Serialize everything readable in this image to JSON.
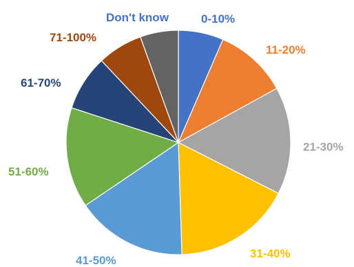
{
  "chart_data": {
    "type": "pie",
    "title": "",
    "categories": [
      "0-10%",
      "11-20%",
      "21-30%",
      "31-40%",
      "41-50%",
      "51-60%",
      "61-70%",
      "71-100%",
      "Don't know"
    ],
    "values": [
      6.5,
      10.5,
      15.5,
      17,
      16,
      14.5,
      8,
      6.5,
      5.5
    ],
    "unit": "%",
    "colors": [
      "#4472C4",
      "#ED7D31",
      "#A5A5A5",
      "#FFC000",
      "#5B9BD5",
      "#70AD47",
      "#264478",
      "#9E480E",
      "#636363"
    ],
    "label_colors": [
      "#4472C4",
      "#ED7D31",
      "#A5A5A5",
      "#FFC000",
      "#5B9BD5",
      "#70AD47",
      "#264478",
      "#9E480E",
      "#4472C4"
    ],
    "start_angle": "12 o'clock",
    "direction": "clockwise",
    "legend": "none",
    "labels_outside": true
  }
}
